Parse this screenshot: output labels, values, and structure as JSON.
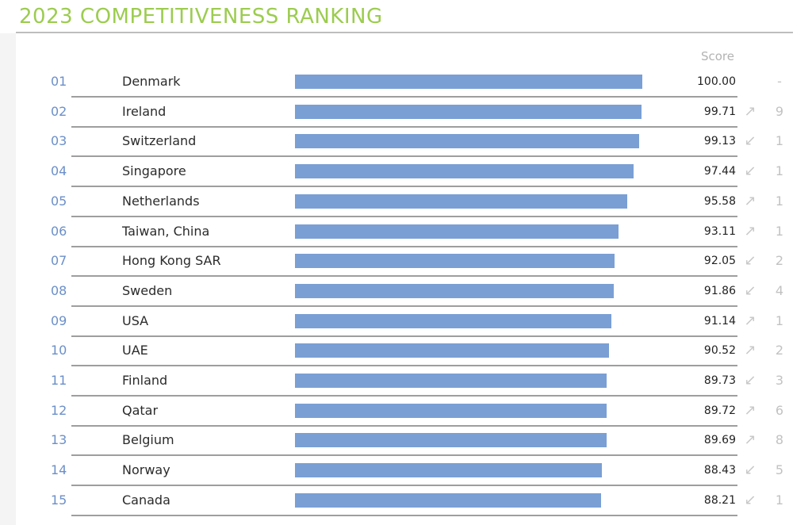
{
  "title": "2023 COMPETITIVENESS RANKING",
  "score_header": "Score",
  "colors": {
    "title": "#9ccc4f",
    "bar": "#7a9fd4",
    "rank": "#6b8fc9",
    "arrow": "#c9c9c9"
  },
  "chart_data": {
    "type": "bar",
    "orientation": "horizontal",
    "title": "2023 COMPETITIVENESS RANKING",
    "value_label": "Score",
    "xlim": [
      0,
      100
    ],
    "rows": [
      {
        "rank": "01",
        "country": "Denmark",
        "score": "100.00",
        "value": 100.0,
        "direction": "",
        "change": "-"
      },
      {
        "rank": "02",
        "country": "Ireland",
        "score": "99.71",
        "value": 99.71,
        "direction": "up",
        "change": "9"
      },
      {
        "rank": "03",
        "country": "Switzerland",
        "score": "99.13",
        "value": 99.13,
        "direction": "down",
        "change": "1"
      },
      {
        "rank": "04",
        "country": "Singapore",
        "score": "97.44",
        "value": 97.44,
        "direction": "down",
        "change": "1"
      },
      {
        "rank": "05",
        "country": "Netherlands",
        "score": "95.58",
        "value": 95.58,
        "direction": "up",
        "change": "1"
      },
      {
        "rank": "06",
        "country": "Taiwan, China",
        "score": "93.11",
        "value": 93.11,
        "direction": "up",
        "change": "1"
      },
      {
        "rank": "07",
        "country": "Hong Kong SAR",
        "score": "92.05",
        "value": 92.05,
        "direction": "down",
        "change": "2"
      },
      {
        "rank": "08",
        "country": "Sweden",
        "score": "91.86",
        "value": 91.86,
        "direction": "down",
        "change": "4"
      },
      {
        "rank": "09",
        "country": "USA",
        "score": "91.14",
        "value": 91.14,
        "direction": "up",
        "change": "1"
      },
      {
        "rank": "10",
        "country": "UAE",
        "score": "90.52",
        "value": 90.52,
        "direction": "up",
        "change": "2"
      },
      {
        "rank": "11",
        "country": "Finland",
        "score": "89.73",
        "value": 89.73,
        "direction": "down",
        "change": "3"
      },
      {
        "rank": "12",
        "country": "Qatar",
        "score": "89.72",
        "value": 89.72,
        "direction": "up",
        "change": "6"
      },
      {
        "rank": "13",
        "country": "Belgium",
        "score": "89.69",
        "value": 89.69,
        "direction": "up",
        "change": "8"
      },
      {
        "rank": "14",
        "country": "Norway",
        "score": "88.43",
        "value": 88.43,
        "direction": "down",
        "change": "5"
      },
      {
        "rank": "15",
        "country": "Canada",
        "score": "88.21",
        "value": 88.21,
        "direction": "down",
        "change": "1"
      }
    ]
  }
}
